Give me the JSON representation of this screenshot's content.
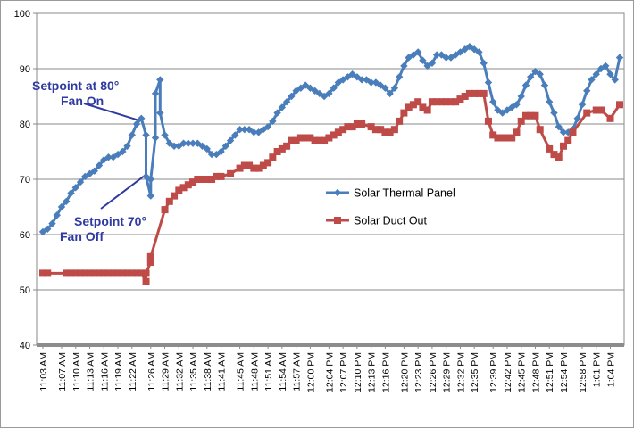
{
  "chart_data": {
    "type": "line",
    "title": "",
    "xlabel": "",
    "ylabel": "",
    "ylim": [
      40,
      100
    ],
    "yticks": [
      40,
      50,
      60,
      70,
      80,
      90,
      100
    ],
    "grid": true,
    "legend_position": "center-right",
    "x": [
      "11:03 AM",
      "11:04 AM",
      "11:05 AM",
      "11:06 AM",
      "11:07 AM",
      "11:08 AM",
      "11:09 AM",
      "11:10 AM",
      "11:11 AM",
      "11:12 AM",
      "11:13 AM",
      "11:14 AM",
      "11:15 AM",
      "11:16 AM",
      "11:17 AM",
      "11:18 AM",
      "11:19 AM",
      "11:20 AM",
      "11:21 AM",
      "11:22 AM",
      "11:23 AM",
      "11:24 AM",
      "11:25 AM",
      "11:26 AM",
      "11:27 AM",
      "11:28 AM",
      "11:29 AM",
      "11:30 AM",
      "11:31 AM",
      "11:32 AM",
      "11:33 AM",
      "11:34 AM",
      "11:35 AM",
      "11:36 AM",
      "11:37 AM",
      "11:38 AM",
      "11:39 AM",
      "11:40 AM",
      "11:41 AM",
      "11:42 AM",
      "11:43 AM",
      "11:44 AM",
      "11:45 AM",
      "11:46 AM",
      "11:47 AM",
      "11:48 AM",
      "11:49 AM",
      "11:50 AM",
      "11:51 AM",
      "11:52 AM",
      "11:53 AM",
      "11:54 AM",
      "11:55 AM",
      "11:56 AM",
      "11:57 AM",
      "11:58 AM",
      "11:59 AM",
      "12:00 PM",
      "12:01 PM",
      "12:02 PM",
      "12:03 PM",
      "12:04 PM",
      "12:05 PM",
      "12:06 PM",
      "12:07 PM",
      "12:08 PM",
      "12:09 PM",
      "12:10 PM",
      "12:11 PM",
      "12:12 PM",
      "12:13 PM",
      "12:14 PM",
      "12:15 PM",
      "12:16 PM",
      "12:17 PM",
      "12:18 PM",
      "12:19 PM",
      "12:20 PM",
      "12:21 PM",
      "12:22 PM",
      "12:23 PM",
      "12:24 PM",
      "12:25 PM",
      "12:26 PM",
      "12:27 PM",
      "12:28 PM",
      "12:29 PM",
      "12:30 PM",
      "12:31 PM",
      "12:32 PM",
      "12:33 PM",
      "12:34 PM",
      "12:35 PM",
      "12:36 PM",
      "12:37 PM",
      "12:38 PM",
      "12:39 PM",
      "12:40 PM",
      "12:41 PM",
      "12:42 PM",
      "12:43 PM",
      "12:44 PM",
      "12:45 PM",
      "12:46 PM",
      "12:47 PM",
      "12:48 PM",
      "12:49 PM",
      "12:50 PM",
      "12:51 PM",
      "12:52 PM",
      "12:53 PM",
      "12:54 PM",
      "12:55 PM",
      "12:56 PM",
      "12:57 PM",
      "12:58 PM",
      "12:59 PM",
      "1:00 PM",
      "1:01 PM",
      "1:02 PM",
      "1:03 PM",
      "1:04 PM",
      "1:05 PM",
      "1:06 PM"
    ],
    "x_tick_labels": [
      "11:03 AM",
      "11:07 AM",
      "11:10 AM",
      "11:13 AM",
      "11:16 AM",
      "11:19 AM",
      "11:22 AM",
      "11:26 AM",
      "11:29 AM",
      "11:32 AM",
      "11:35 AM",
      "11:38 AM",
      "11:41 AM",
      "11:45 AM",
      "11:48 AM",
      "11:51 AM",
      "11:54 AM",
      "11:57 AM",
      "12:00 PM",
      "12:04 PM",
      "12:07 PM",
      "12:10 PM",
      "12:13 PM",
      "12:16 PM",
      "12:20 PM",
      "12:23 PM",
      "12:26 PM",
      "12:29 PM",
      "12:32 PM",
      "12:35 PM",
      "12:39 PM",
      "12:42 PM",
      "12:45 PM",
      "12:48 PM",
      "12:51 PM",
      "12:54 PM",
      "12:58 PM",
      "1:01 PM",
      "1:04 PM"
    ],
    "series": [
      {
        "name": "Solar Thermal Panel",
        "color": "#4a7ebb",
        "marker": "diamond",
        "points": [
          [
            "11:03 AM",
            60.5
          ],
          [
            "11:04 AM",
            61
          ],
          [
            "11:05 AM",
            62
          ],
          [
            "11:06 AM",
            63.5
          ],
          [
            "11:07 AM",
            65
          ],
          [
            "11:08 AM",
            66
          ],
          [
            "11:09 AM",
            67.5
          ],
          [
            "11:10 AM",
            68.5
          ],
          [
            "11:11 AM",
            69.5
          ],
          [
            "11:12 AM",
            70.5
          ],
          [
            "11:13 AM",
            71
          ],
          [
            "11:14 AM",
            71.5
          ],
          [
            "11:15 AM",
            72.5
          ],
          [
            "11:16 AM",
            73.5
          ],
          [
            "11:17 AM",
            74
          ],
          [
            "11:18 AM",
            74
          ],
          [
            "11:19 AM",
            74.5
          ],
          [
            "11:20 AM",
            75
          ],
          [
            "11:21 AM",
            76
          ],
          [
            "11:22 AM",
            78
          ],
          [
            "11:23 AM",
            80
          ],
          [
            "11:24 AM",
            81
          ],
          [
            "11:25 AM",
            78
          ],
          [
            "11:25 AM",
            70.5
          ],
          [
            "11:26 AM",
            67
          ],
          [
            "11:26 AM",
            70
          ],
          [
            "11:27 AM",
            77.5
          ],
          [
            "11:27 AM",
            85.5
          ],
          [
            "11:28 AM",
            88
          ],
          [
            "11:28 AM",
            82
          ],
          [
            "11:29 AM",
            78
          ],
          [
            "11:30 AM",
            76.5
          ],
          [
            "11:31 AM",
            76
          ],
          [
            "11:32 AM",
            76
          ],
          [
            "11:33 AM",
            76.5
          ],
          [
            "11:34 AM",
            76.5
          ],
          [
            "11:35 AM",
            76.5
          ],
          [
            "11:36 AM",
            76.5
          ],
          [
            "11:37 AM",
            76
          ],
          [
            "11:38 AM",
            75.5
          ],
          [
            "11:39 AM",
            74.5
          ],
          [
            "11:40 AM",
            74.5
          ],
          [
            "11:41 AM",
            75
          ],
          [
            "11:42 AM",
            76
          ],
          [
            "11:43 AM",
            77
          ],
          [
            "11:44 AM",
            78
          ],
          [
            "11:45 AM",
            79
          ],
          [
            "11:46 AM",
            79
          ],
          [
            "11:47 AM",
            79
          ],
          [
            "11:48 AM",
            78.5
          ],
          [
            "11:49 AM",
            78.5
          ],
          [
            "11:50 AM",
            79
          ],
          [
            "11:51 AM",
            79.5
          ],
          [
            "11:52 AM",
            80.5
          ],
          [
            "11:53 AM",
            82
          ],
          [
            "11:54 AM",
            83
          ],
          [
            "11:55 AM",
            84
          ],
          [
            "11:56 AM",
            85
          ],
          [
            "11:57 AM",
            86
          ],
          [
            "11:58 AM",
            86.5
          ],
          [
            "11:59 AM",
            87
          ],
          [
            "12:00 PM",
            86.5
          ],
          [
            "12:01 PM",
            86
          ],
          [
            "12:02 PM",
            85.5
          ],
          [
            "12:03 PM",
            85
          ],
          [
            "12:04 PM",
            85.5
          ],
          [
            "12:05 PM",
            86.5
          ],
          [
            "12:06 PM",
            87.5
          ],
          [
            "12:07 PM",
            88
          ],
          [
            "12:08 PM",
            88.5
          ],
          [
            "12:09 PM",
            89
          ],
          [
            "12:10 PM",
            88.5
          ],
          [
            "12:11 PM",
            88
          ],
          [
            "12:12 PM",
            88
          ],
          [
            "12:13 PM",
            87.5
          ],
          [
            "12:14 PM",
            87.5
          ],
          [
            "12:15 PM",
            87
          ],
          [
            "12:16 PM",
            86.5
          ],
          [
            "12:17 PM",
            85.5
          ],
          [
            "12:18 PM",
            86.5
          ],
          [
            "12:19 PM",
            88.5
          ],
          [
            "12:20 PM",
            90.5
          ],
          [
            "12:21 PM",
            92
          ],
          [
            "12:22 PM",
            92.5
          ],
          [
            "12:23 PM",
            93
          ],
          [
            "12:24 PM",
            91.5
          ],
          [
            "12:25 PM",
            90.5
          ],
          [
            "12:26 PM",
            91
          ],
          [
            "12:27 PM",
            92.5
          ],
          [
            "12:28 PM",
            92.5
          ],
          [
            "12:29 PM",
            92
          ],
          [
            "12:30 PM",
            92
          ],
          [
            "12:31 PM",
            92.5
          ],
          [
            "12:32 PM",
            93
          ],
          [
            "12:33 PM",
            93.5
          ],
          [
            "12:34 PM",
            94
          ],
          [
            "12:35 PM",
            93.5
          ],
          [
            "12:36 PM",
            93
          ],
          [
            "12:37 PM",
            91
          ],
          [
            "12:38 PM",
            87.5
          ],
          [
            "12:39 PM",
            84
          ],
          [
            "12:40 PM",
            82.5
          ],
          [
            "12:41 PM",
            82
          ],
          [
            "12:42 PM",
            82.5
          ],
          [
            "12:43 PM",
            83
          ],
          [
            "12:44 PM",
            83.5
          ],
          [
            "12:45 PM",
            85
          ],
          [
            "12:46 PM",
            87
          ],
          [
            "12:47 PM",
            88.5
          ],
          [
            "12:48 PM",
            89.5
          ],
          [
            "12:49 PM",
            89
          ],
          [
            "12:50 PM",
            87
          ],
          [
            "12:51 PM",
            84
          ],
          [
            "12:52 PM",
            82
          ],
          [
            "12:53 PM",
            79.5
          ],
          [
            "12:54 PM",
            78.5
          ],
          [
            "12:55 PM",
            78.5
          ],
          [
            "12:56 PM",
            79
          ],
          [
            "12:57 PM",
            81
          ],
          [
            "12:58 PM",
            83.5
          ],
          [
            "12:59 PM",
            86
          ],
          [
            "1:00 PM",
            88
          ],
          [
            "1:01 PM",
            89
          ],
          [
            "1:02 PM",
            90
          ],
          [
            "1:03 PM",
            90.5
          ],
          [
            "1:04 PM",
            89
          ],
          [
            "1:05 PM",
            88
          ],
          [
            "1:06 PM",
            92
          ]
        ]
      },
      {
        "name": "Solar Duct Out",
        "color": "#be4b48",
        "marker": "square",
        "points": [
          [
            "11:03 AM",
            53
          ],
          [
            "11:04 AM",
            53
          ],
          [
            "11:08 AM",
            53
          ],
          [
            "11:09 AM",
            53
          ],
          [
            "11:10 AM",
            53
          ],
          [
            "11:11 AM",
            53
          ],
          [
            "11:12 AM",
            53
          ],
          [
            "11:13 AM",
            53
          ],
          [
            "11:14 AM",
            53
          ],
          [
            "11:15 AM",
            53
          ],
          [
            "11:16 AM",
            53
          ],
          [
            "11:17 AM",
            53
          ],
          [
            "11:18 AM",
            53
          ],
          [
            "11:19 AM",
            53
          ],
          [
            "11:20 AM",
            53
          ],
          [
            "11:21 AM",
            53
          ],
          [
            "11:22 AM",
            53
          ],
          [
            "11:23 AM",
            53
          ],
          [
            "11:24 AM",
            53
          ],
          [
            "11:25 AM",
            51.5
          ],
          [
            "11:25 AM",
            53
          ],
          [
            "11:26 AM",
            55
          ],
          [
            "11:26 AM",
            56
          ],
          [
            "11:29 AM",
            64.5
          ],
          [
            "11:30 AM",
            66
          ],
          [
            "11:31 AM",
            67
          ],
          [
            "11:32 AM",
            68
          ],
          [
            "11:33 AM",
            68.5
          ],
          [
            "11:34 AM",
            69
          ],
          [
            "11:35 AM",
            69.5
          ],
          [
            "11:36 AM",
            70
          ],
          [
            "11:37 AM",
            70
          ],
          [
            "11:38 AM",
            70
          ],
          [
            "11:39 AM",
            70
          ],
          [
            "11:40 AM",
            70.5
          ],
          [
            "11:41 AM",
            70.5
          ],
          [
            "11:43 AM",
            71
          ],
          [
            "11:45 AM",
            72
          ],
          [
            "11:46 AM",
            72.5
          ],
          [
            "11:47 AM",
            72.5
          ],
          [
            "11:48 AM",
            72
          ],
          [
            "11:49 AM",
            72
          ],
          [
            "11:50 AM",
            72.5
          ],
          [
            "11:51 AM",
            73
          ],
          [
            "11:52 AM",
            74
          ],
          [
            "11:53 AM",
            75
          ],
          [
            "11:54 AM",
            75.5
          ],
          [
            "11:55 AM",
            76
          ],
          [
            "11:56 AM",
            77
          ],
          [
            "11:57 AM",
            77
          ],
          [
            "11:58 AM",
            77.5
          ],
          [
            "11:59 AM",
            77.5
          ],
          [
            "12:00 PM",
            77.5
          ],
          [
            "12:01 PM",
            77
          ],
          [
            "12:02 PM",
            77
          ],
          [
            "12:03 PM",
            77
          ],
          [
            "12:04 PM",
            77.5
          ],
          [
            "12:05 PM",
            78
          ],
          [
            "12:06 PM",
            78.5
          ],
          [
            "12:07 PM",
            79
          ],
          [
            "12:08 PM",
            79.5
          ],
          [
            "12:09 PM",
            79.5
          ],
          [
            "12:10 PM",
            80
          ],
          [
            "12:11 PM",
            80
          ],
          [
            "12:13 PM",
            79.5
          ],
          [
            "12:14 PM",
            79
          ],
          [
            "12:15 PM",
            79
          ],
          [
            "12:16 PM",
            78.5
          ],
          [
            "12:17 PM",
            78.5
          ],
          [
            "12:18 PM",
            79
          ],
          [
            "12:19 PM",
            80.5
          ],
          [
            "12:20 PM",
            82
          ],
          [
            "12:21 PM",
            83
          ],
          [
            "12:22 PM",
            83.5
          ],
          [
            "12:23 PM",
            84
          ],
          [
            "12:24 PM",
            83
          ],
          [
            "12:25 PM",
            82.5
          ],
          [
            "12:26 PM",
            84
          ],
          [
            "12:27 PM",
            84
          ],
          [
            "12:28 PM",
            84
          ],
          [
            "12:29 PM",
            84
          ],
          [
            "12:30 PM",
            84
          ],
          [
            "12:31 PM",
            84
          ],
          [
            "12:32 PM",
            84.5
          ],
          [
            "12:33 PM",
            85
          ],
          [
            "12:34 PM",
            85.5
          ],
          [
            "12:35 PM",
            85.5
          ],
          [
            "12:36 PM",
            85.5
          ],
          [
            "12:37 PM",
            85.5
          ],
          [
            "12:38 PM",
            80.5
          ],
          [
            "12:39 PM",
            78
          ],
          [
            "12:40 PM",
            77.5
          ],
          [
            "12:41 PM",
            77.5
          ],
          [
            "12:42 PM",
            77.5
          ],
          [
            "12:43 PM",
            77.5
          ],
          [
            "12:44 PM",
            78.5
          ],
          [
            "12:45 PM",
            80.5
          ],
          [
            "12:46 PM",
            81.5
          ],
          [
            "12:47 PM",
            81.5
          ],
          [
            "12:48 PM",
            81.5
          ],
          [
            "12:49 PM",
            79
          ],
          [
            "12:51 PM",
            75.5
          ],
          [
            "12:52 PM",
            74.5
          ],
          [
            "12:53 PM",
            74
          ],
          [
            "12:54 PM",
            76
          ],
          [
            "12:55 PM",
            77
          ],
          [
            "12:56 PM",
            78.5
          ],
          [
            "12:59 PM",
            82
          ],
          [
            "1:01 PM",
            82.5
          ],
          [
            "1:02 PM",
            82.5
          ],
          [
            "1:04 PM",
            81
          ],
          [
            "1:06 PM",
            83.5
          ]
        ]
      }
    ],
    "annotations": [
      {
        "lines": [
          "Setpoint at 80°",
          "Fan On"
        ],
        "arrow_to": [
          "11:24 AM",
          81
        ]
      },
      {
        "lines": [
          "Setpoint 70°",
          "Fan Off"
        ],
        "arrow_to": [
          "11:25 AM",
          70.5
        ]
      }
    ]
  }
}
